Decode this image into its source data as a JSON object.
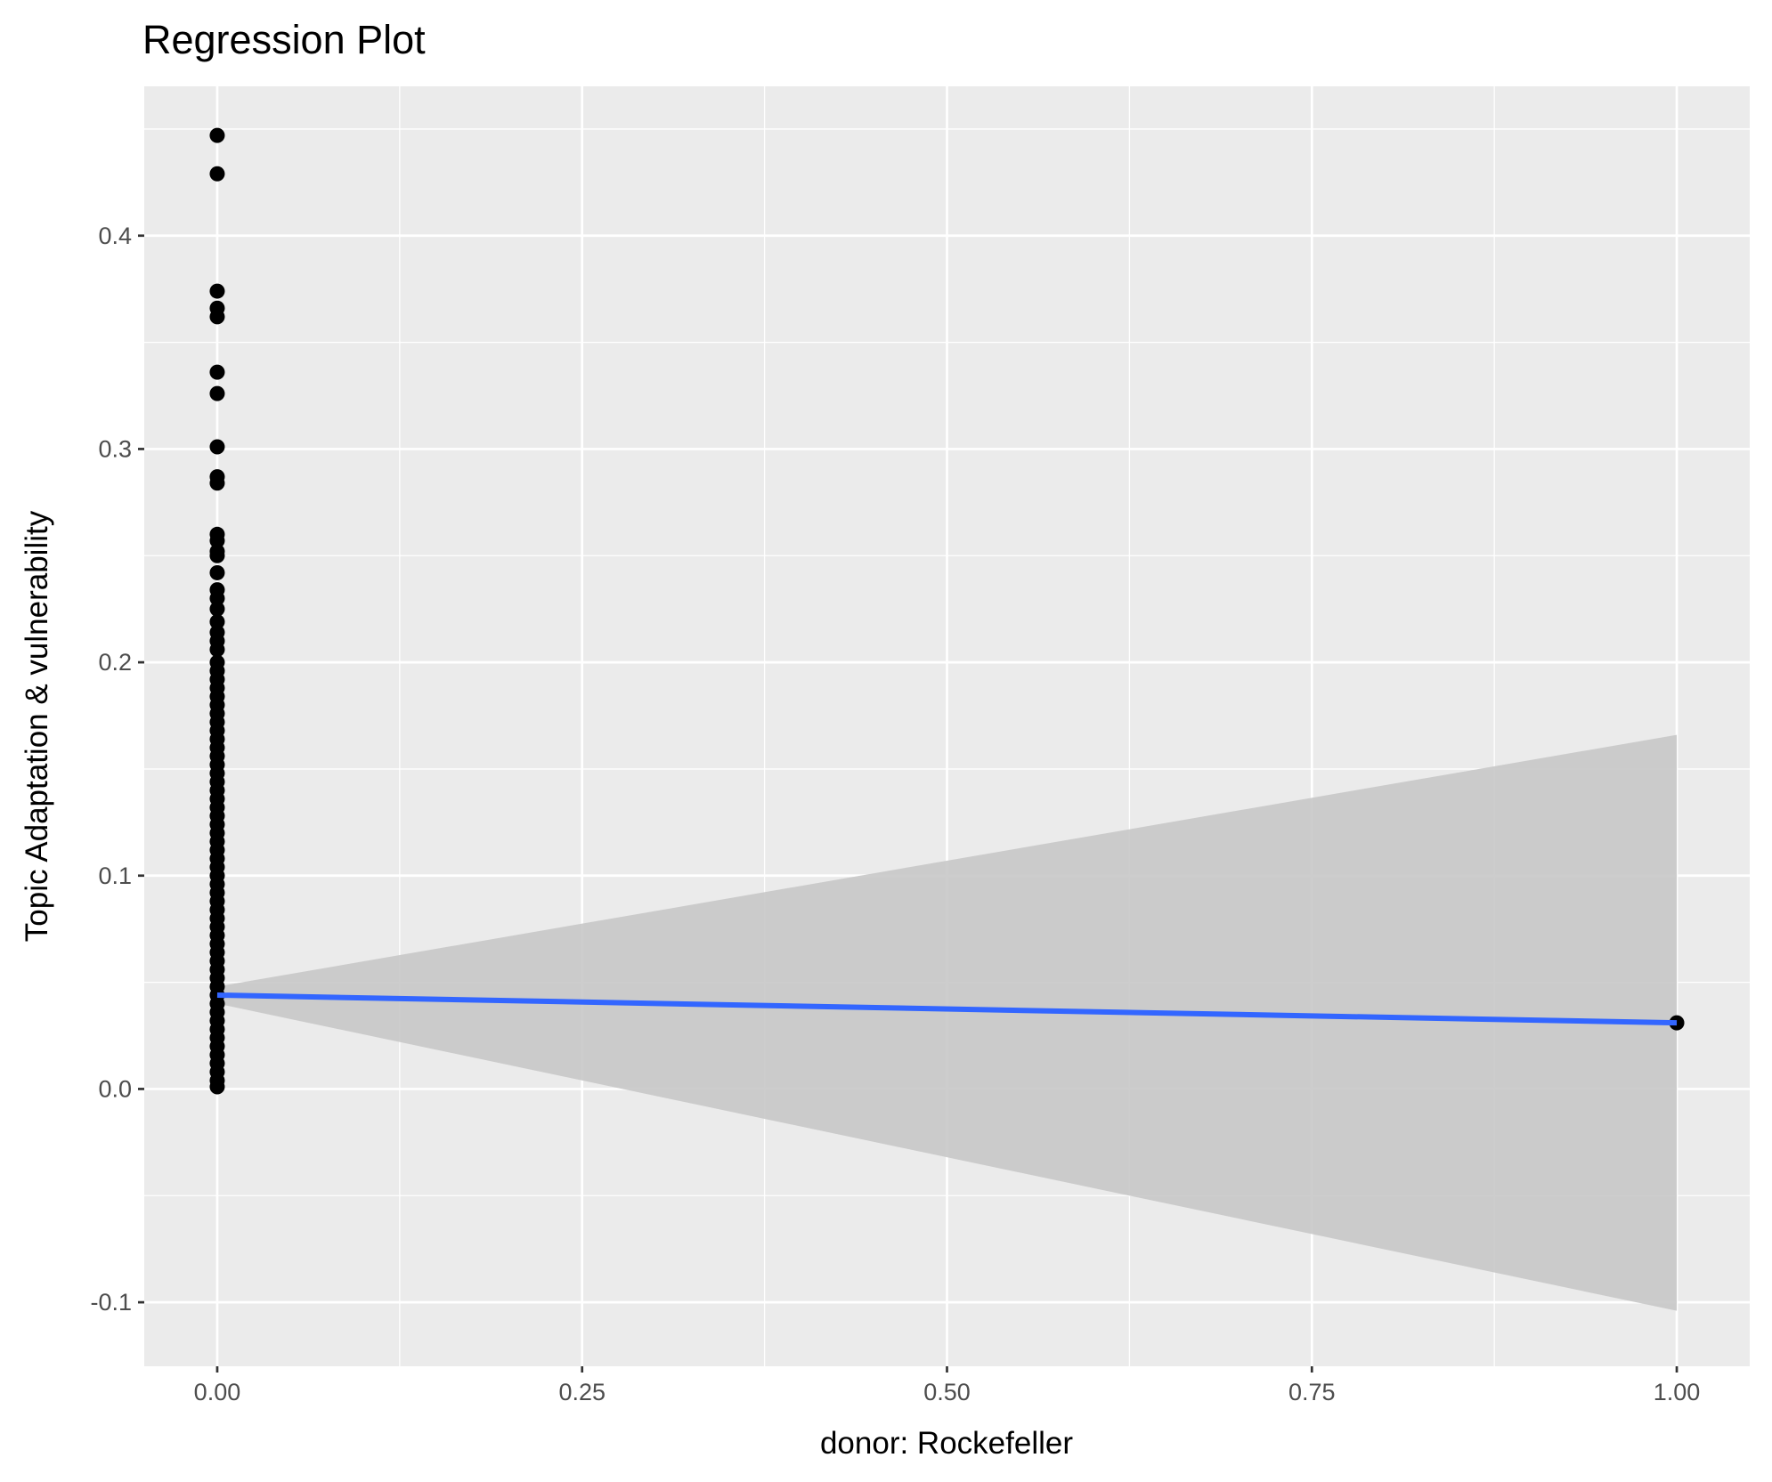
{
  "chart_data": {
    "type": "scatter",
    "title": "Regression Plot",
    "xlabel": "donor: Rockefeller",
    "ylabel": "Topic Adaptation & vulnerability",
    "xlim": [
      -0.05,
      1.05
    ],
    "ylim": [
      -0.13,
      0.47
    ],
    "x_ticks": [
      0.0,
      0.25,
      0.5,
      0.75,
      1.0
    ],
    "x_tick_labels": [
      "0.00",
      "0.25",
      "0.50",
      "0.75",
      "1.00"
    ],
    "y_ticks": [
      -0.1,
      0.0,
      0.1,
      0.2,
      0.3,
      0.4
    ],
    "y_tick_labels": [
      "-0.1",
      "0.0",
      "0.1",
      "0.2",
      "0.3",
      "0.4"
    ],
    "grid": true,
    "colors": {
      "panel": "#ebebeb",
      "grid": "#ffffff",
      "points": "#000000",
      "fit_line": "#3366ff",
      "confidence_band": "#c8c8c8"
    },
    "points": [
      {
        "x": 0,
        "y": 0.447
      },
      {
        "x": 0,
        "y": 0.429
      },
      {
        "x": 0,
        "y": 0.374
      },
      {
        "x": 0,
        "y": 0.366
      },
      {
        "x": 0,
        "y": 0.362
      },
      {
        "x": 0,
        "y": 0.336
      },
      {
        "x": 0,
        "y": 0.326
      },
      {
        "x": 0,
        "y": 0.301
      },
      {
        "x": 0,
        "y": 0.287
      },
      {
        "x": 0,
        "y": 0.284
      },
      {
        "x": 0,
        "y": 0.26
      },
      {
        "x": 0,
        "y": 0.257
      },
      {
        "x": 0,
        "y": 0.252
      },
      {
        "x": 0,
        "y": 0.25
      },
      {
        "x": 0,
        "y": 0.242
      },
      {
        "x": 0,
        "y": 0.234
      },
      {
        "x": 0,
        "y": 0.23
      },
      {
        "x": 0,
        "y": 0.225
      },
      {
        "x": 0,
        "y": 0.219
      },
      {
        "x": 0,
        "y": 0.214
      },
      {
        "x": 0,
        "y": 0.21
      },
      {
        "x": 0,
        "y": 0.206
      },
      {
        "x": 0,
        "y": 0.2
      },
      {
        "x": 0,
        "y": 0.196
      },
      {
        "x": 0,
        "y": 0.192
      },
      {
        "x": 0,
        "y": 0.188
      },
      {
        "x": 0,
        "y": 0.184
      },
      {
        "x": 0,
        "y": 0.18
      },
      {
        "x": 0,
        "y": 0.176
      },
      {
        "x": 0,
        "y": 0.172
      },
      {
        "x": 0,
        "y": 0.168
      },
      {
        "x": 0,
        "y": 0.164
      },
      {
        "x": 0,
        "y": 0.16
      },
      {
        "x": 0,
        "y": 0.156
      },
      {
        "x": 0,
        "y": 0.152
      },
      {
        "x": 0,
        "y": 0.148
      },
      {
        "x": 0,
        "y": 0.144
      },
      {
        "x": 0,
        "y": 0.14
      },
      {
        "x": 0,
        "y": 0.136
      },
      {
        "x": 0,
        "y": 0.132
      },
      {
        "x": 0,
        "y": 0.128
      },
      {
        "x": 0,
        "y": 0.124
      },
      {
        "x": 0,
        "y": 0.12
      },
      {
        "x": 0,
        "y": 0.116
      },
      {
        "x": 0,
        "y": 0.112
      },
      {
        "x": 0,
        "y": 0.108
      },
      {
        "x": 0,
        "y": 0.104
      },
      {
        "x": 0,
        "y": 0.1
      },
      {
        "x": 0,
        "y": 0.096
      },
      {
        "x": 0,
        "y": 0.092
      },
      {
        "x": 0,
        "y": 0.088
      },
      {
        "x": 0,
        "y": 0.084
      },
      {
        "x": 0,
        "y": 0.08
      },
      {
        "x": 0,
        "y": 0.076
      },
      {
        "x": 0,
        "y": 0.072
      },
      {
        "x": 0,
        "y": 0.068
      },
      {
        "x": 0,
        "y": 0.064
      },
      {
        "x": 0,
        "y": 0.06
      },
      {
        "x": 0,
        "y": 0.056
      },
      {
        "x": 0,
        "y": 0.052
      },
      {
        "x": 0,
        "y": 0.048
      },
      {
        "x": 0,
        "y": 0.044
      },
      {
        "x": 0,
        "y": 0.04
      },
      {
        "x": 0,
        "y": 0.036
      },
      {
        "x": 0,
        "y": 0.032
      },
      {
        "x": 0,
        "y": 0.028
      },
      {
        "x": 0,
        "y": 0.024
      },
      {
        "x": 0,
        "y": 0.02
      },
      {
        "x": 0,
        "y": 0.016
      },
      {
        "x": 0,
        "y": 0.012
      },
      {
        "x": 0,
        "y": 0.008
      },
      {
        "x": 0,
        "y": 0.004
      },
      {
        "x": 0,
        "y": 0.001
      },
      {
        "x": 1,
        "y": 0.031
      }
    ],
    "fit_line": [
      {
        "x": 0,
        "y": 0.044
      },
      {
        "x": 1,
        "y": 0.031
      }
    ],
    "confidence_band": [
      {
        "x": 0,
        "lower": 0.04,
        "upper": 0.048
      },
      {
        "x": 1,
        "lower": -0.104,
        "upper": 0.166
      }
    ]
  }
}
